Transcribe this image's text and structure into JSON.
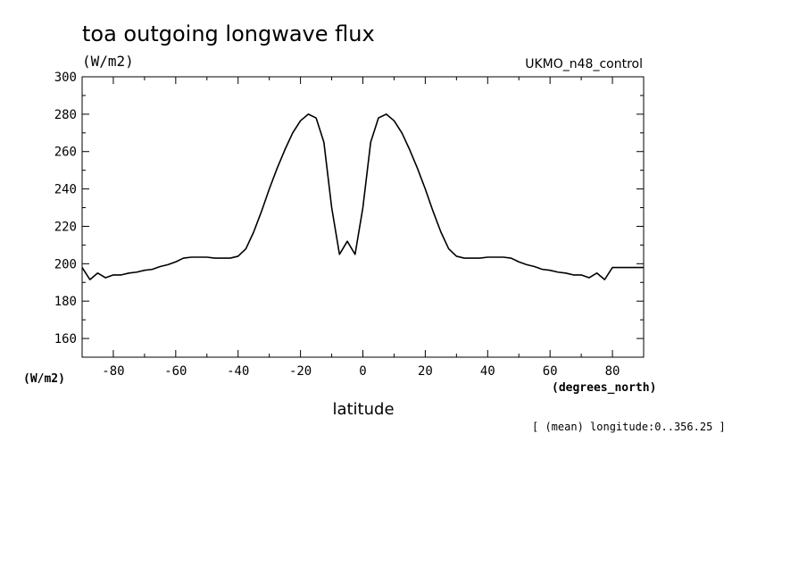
{
  "chart_data": {
    "type": "line",
    "title": "toa outgoing longwave flux",
    "units": "(W/m2)",
    "model": "UKMO_n48_control",
    "xlabel": "latitude",
    "xunits": "(degrees_north)",
    "yunits_left": "(W/m2)",
    "note": "[ (mean) longitude:0..356.25 ]",
    "xlim": [
      -90,
      90
    ],
    "ylim": [
      150,
      300
    ],
    "xticks": [
      -80,
      -60,
      -40,
      -20,
      0,
      20,
      40,
      60,
      80
    ],
    "xtick_labels": [
      "-80",
      "-60",
      "-40",
      "-20",
      "0",
      "20",
      "40",
      "60",
      "80"
    ],
    "yticks": [
      160,
      180,
      200,
      220,
      240,
      260,
      280,
      300
    ],
    "ytick_labels": [
      "160",
      "180",
      "200",
      "220",
      "240",
      "260",
      "280",
      "300"
    ],
    "grid": false,
    "series": [
      {
        "x": [
          -90,
          -87.5,
          -85,
          -82.5,
          -80,
          -77.5,
          -75,
          -72.5,
          -70,
          -67.5,
          -65,
          -62.5,
          -60,
          -57.5,
          -55,
          -52.5,
          -50,
          -47.5,
          -45,
          -42.5,
          -40,
          -37.5,
          -35,
          -32.5,
          -30,
          -27.5,
          -25,
          -22.5,
          -20,
          -17.5,
          -15,
          -12.5,
          -10,
          -7.5,
          -5,
          -2.5,
          0,
          2.5,
          5,
          7.5,
          10,
          12.5,
          15,
          17.5,
          20,
          22.5,
          25,
          27.5,
          30,
          32.5,
          35,
          37.5,
          40,
          42.5,
          45,
          47.5,
          50,
          52.5,
          55,
          57.5,
          60,
          62.5,
          65,
          67.5,
          70,
          72.5,
          75,
          77.5,
          80,
          82.5,
          85,
          87.5,
          90
        ],
        "y": [
          198,
          191.5,
          195,
          192.5,
          194,
          194,
          195,
          195.5,
          196.5,
          197,
          198.5,
          199.5,
          201,
          203,
          203.5,
          203.5,
          203.5,
          203,
          203,
          203,
          204,
          208,
          217,
          228,
          240,
          251,
          261,
          270,
          276.5,
          280,
          278,
          265,
          230,
          205,
          212,
          205,
          230,
          265,
          278,
          280,
          276.5,
          270,
          261,
          251,
          240,
          228,
          217,
          208,
          204,
          203,
          203,
          203,
          203.5,
          203.5,
          203.5,
          203,
          201,
          199.5,
          198.5,
          197,
          196.5,
          195.5,
          195,
          194,
          194,
          192.5,
          195,
          191.5,
          198,
          198,
          198,
          198,
          198
        ]
      }
    ]
  }
}
